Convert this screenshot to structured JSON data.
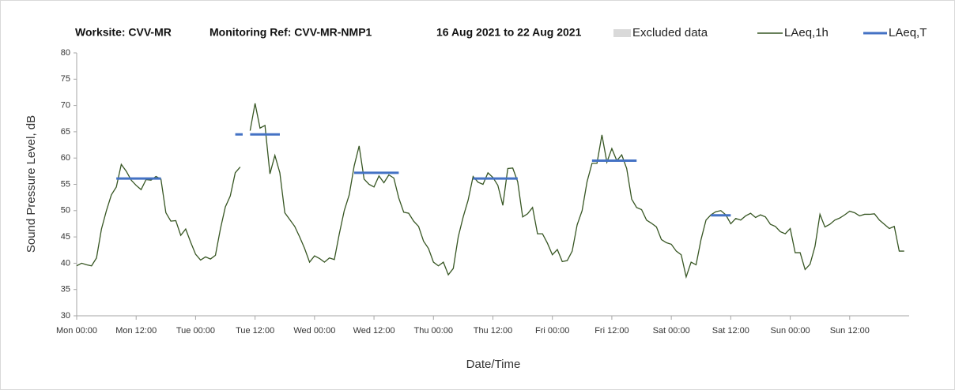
{
  "chart_data": {
    "type": "line",
    "title_parts": [
      "Worksite: CVV-MR",
      "Monitoring Ref: CVV-MR-NMP1",
      "16 Aug 2021 to 22 Aug 2021"
    ],
    "xlabel": "Date/Time",
    "ylabel": "Sound Pressure Level, dB",
    "xlim": [
      0,
      168
    ],
    "xticks": [
      {
        "value": 0,
        "label": "Mon 00:00"
      },
      {
        "value": 12,
        "label": "Mon 12:00"
      },
      {
        "value": 24,
        "label": "Tue 00:00"
      },
      {
        "value": 36,
        "label": "Tue 12:00"
      },
      {
        "value": 48,
        "label": "Wed 00:00"
      },
      {
        "value": 60,
        "label": "Wed 12:00"
      },
      {
        "value": 72,
        "label": "Thu 00:00"
      },
      {
        "value": 84,
        "label": "Thu 12:00"
      },
      {
        "value": 96,
        "label": "Fri 00:00"
      },
      {
        "value": 108,
        "label": "Fri 12:00"
      },
      {
        "value": 120,
        "label": "Sat 00:00"
      },
      {
        "value": 132,
        "label": "Sat 12:00"
      },
      {
        "value": 144,
        "label": "Sun 00:00"
      },
      {
        "value": 156,
        "label": "Sun 12:00"
      }
    ],
    "ylim": [
      30,
      80
    ],
    "yticks": [
      30,
      35,
      40,
      45,
      50,
      55,
      60,
      65,
      70,
      75,
      80
    ],
    "grid": false,
    "excluded": {
      "name": "Excluded data",
      "color": "#d9d9d9"
    },
    "series": [
      {
        "name": "LAeq,1h",
        "color": "#375623",
        "x": [
          0,
          1,
          2,
          3,
          4,
          5,
          6,
          7,
          8,
          9,
          10,
          11,
          12,
          13,
          14,
          15,
          16,
          17,
          18,
          19,
          20,
          21,
          22,
          23,
          24,
          25,
          26,
          27,
          28,
          29,
          30,
          31,
          32,
          33,
          34,
          35,
          36,
          37,
          38,
          39,
          40,
          41,
          42,
          43,
          44,
          45,
          46,
          47,
          48,
          49,
          50,
          51,
          52,
          53,
          54,
          55,
          56,
          57,
          58,
          59,
          60,
          61,
          62,
          63,
          64,
          65,
          66,
          67,
          68,
          69,
          70,
          71,
          72,
          73,
          74,
          75,
          76,
          77,
          78,
          79,
          80,
          81,
          82,
          83,
          84,
          85,
          86,
          87,
          88,
          89,
          90,
          91,
          92,
          93,
          94,
          95,
          96,
          97,
          98,
          99,
          100,
          101,
          102,
          103,
          104,
          105,
          106,
          107,
          108,
          109,
          110,
          111,
          112,
          113,
          114,
          115,
          116,
          117,
          118,
          119,
          120,
          121,
          122,
          123,
          124,
          125,
          126,
          127,
          128,
          129,
          130,
          131,
          132,
          133,
          134,
          135,
          136,
          137,
          138,
          139,
          140,
          141,
          142,
          143,
          144,
          145,
          146,
          147,
          148,
          149,
          150,
          151,
          152,
          153,
          154,
          155,
          156,
          157,
          158,
          159,
          160,
          161,
          162,
          163,
          164,
          165,
          166,
          167
        ],
        "values": [
          39.5,
          40,
          39.7,
          39.5,
          41,
          46.5,
          50,
          53,
          54.5,
          58.8,
          57.5,
          55.8,
          54.8,
          54,
          55.9,
          55.8,
          56.5,
          56,
          49.6,
          48,
          48.1,
          45.3,
          46.5,
          44,
          41.7,
          40.6,
          41.2,
          40.8,
          41.5,
          46.5,
          50.7,
          52.8,
          57.2,
          58.3,
          null,
          65.2,
          70.4,
          65.7,
          66.2,
          57,
          60.5,
          57.2,
          49.6,
          48.3,
          47,
          45,
          42.8,
          40.2,
          41.4,
          40.9,
          40.2,
          41,
          40.7,
          45.6,
          50,
          53,
          58.5,
          62.3,
          56,
          55,
          54.5,
          56.6,
          55.3,
          56.8,
          56.2,
          52.4,
          49.7,
          49.5,
          48,
          47,
          44.2,
          42.8,
          40.2,
          39.5,
          40.2,
          37.8,
          39,
          45,
          48.8,
          52,
          56.5,
          55.4,
          55,
          57.2,
          56.3,
          54.8,
          51,
          58,
          58.1,
          55.5,
          48.8,
          49.4,
          50.6,
          45.6,
          45.6,
          43.8,
          41.6,
          42.6,
          40.3,
          40.5,
          42.3,
          47.3,
          50,
          55.5,
          59,
          59,
          64.4,
          59.2,
          61.8,
          59.5,
          60.6,
          58,
          52.2,
          50.6,
          50.2,
          48.2,
          47.6,
          46.9,
          44.5,
          43.9,
          43.6,
          42.3,
          41.6,
          37.4,
          40.2,
          39.7,
          44.5,
          48.2,
          49.2,
          49.8,
          50,
          49.2,
          47.5,
          48.5,
          48.2,
          49,
          49.5,
          48.7,
          49.2,
          48.8,
          47.4,
          47,
          46,
          45.6,
          46.6,
          42,
          42,
          38.8,
          39.8,
          43.2,
          49.3,
          46.9,
          47.4,
          48.2,
          48.6,
          49.2,
          49.9,
          49.6,
          49,
          49.3,
          49.3,
          49.4,
          48.2,
          47.4,
          46.6,
          47,
          42.3,
          42.3
        ]
      },
      {
        "name": "LAeq,T",
        "color": "#4472c4",
        "segments": [
          {
            "x": [
              8,
              17
            ],
            "value": 56.1
          },
          {
            "x": [
              32,
              33.5
            ],
            "value": 64.5
          },
          {
            "x": [
              35,
              41
            ],
            "value": 64.5
          },
          {
            "x": [
              56,
              65
            ],
            "value": 57.2
          },
          {
            "x": [
              80,
              89
            ],
            "value": 56.1
          },
          {
            "x": [
              104,
              113
            ],
            "value": 59.5
          },
          {
            "x": [
              128,
              132
            ],
            "value": 49.1
          }
        ]
      }
    ]
  }
}
